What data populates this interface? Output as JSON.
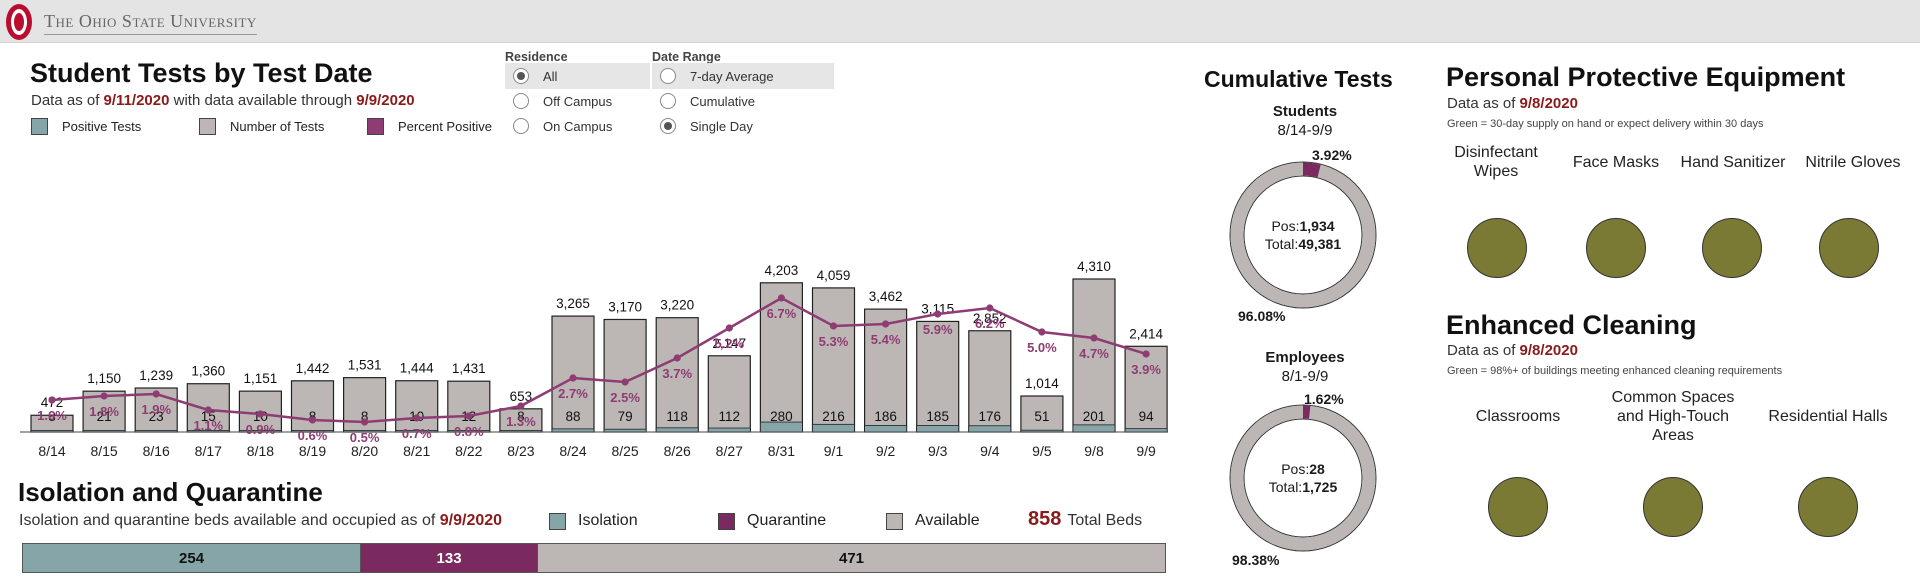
{
  "header": {
    "university": "The Ohio State University"
  },
  "tests_panel": {
    "title": "Student Tests by Test Date",
    "subtitle_prefix": "Data as of ",
    "as_of_date": "9/11/2020",
    "subtitle_mid": " with data available through ",
    "through_date": "9/9/2020",
    "legend": [
      {
        "label": "Positive Tests",
        "color": "#86a5a8"
      },
      {
        "label": "Number of Tests",
        "color": "#bcb7b4"
      },
      {
        "label": "Percent Positive",
        "color": "#8e3c73"
      }
    ]
  },
  "filters": {
    "residence": {
      "title": "Residence",
      "options": [
        "All",
        "Off Campus",
        "On Campus"
      ],
      "selected": "All"
    },
    "date_range": {
      "title": "Date Range",
      "options": [
        "7-day Average",
        "Cumulative",
        "Single Day"
      ],
      "selected": "Single Day"
    }
  },
  "chart_data": {
    "type": "bar",
    "categories": [
      "8/14",
      "8/15",
      "8/16",
      "8/17",
      "8/18",
      "8/19",
      "8/20",
      "8/21",
      "8/22",
      "8/23",
      "8/24",
      "8/25",
      "8/26",
      "8/27",
      "8/31",
      "9/1",
      "9/2",
      "9/3",
      "9/4",
      "9/5",
      "9/8",
      "9/9"
    ],
    "series": [
      {
        "name": "Number of Tests",
        "values": [
          472,
          1150,
          1239,
          1360,
          1151,
          1442,
          1531,
          1444,
          1431,
          653,
          3265,
          3170,
          3220,
          2147,
          4203,
          4059,
          3462,
          3115,
          2852,
          1014,
          4310,
          2414
        ],
        "labels": [
          "472",
          "1,150",
          "1,239",
          "1,360",
          "1,151",
          "1,442",
          "1,531",
          "1,444",
          "1,431",
          "653",
          "3,265",
          "3,170",
          "3,220",
          "2,147",
          "4,203",
          "4,059",
          "3,462",
          "3,115",
          "2,852",
          "1,014",
          "4,310",
          "2,414"
        ]
      },
      {
        "name": "Positive Tests",
        "values": [
          8,
          21,
          23,
          15,
          10,
          8,
          8,
          10,
          12,
          8,
          88,
          79,
          118,
          112,
          280,
          216,
          186,
          185,
          176,
          51,
          201,
          94
        ],
        "labels": [
          "8",
          "21",
          "23",
          "15",
          "10",
          "8",
          "8",
          "10",
          "12",
          "8",
          "88",
          "79",
          "118",
          "112",
          "280",
          "216",
          "186",
          "185",
          "176",
          "51",
          "201",
          "94"
        ]
      },
      {
        "name": "Percent Positive",
        "values": [
          1.6,
          1.8,
          1.9,
          1.1,
          0.9,
          0.6,
          0.5,
          0.7,
          0.8,
          1.3,
          2.7,
          2.5,
          3.7,
          5.2,
          6.7,
          5.3,
          5.4,
          5.9,
          6.2,
          5.0,
          4.7,
          3.9
        ],
        "labels": [
          "1.6%",
          "1.8%",
          "1.9%",
          "1.1%",
          "0.9%",
          "0.6%",
          "0.5%",
          "0.7%",
          "0.8%",
          "1.3%",
          "2.7%",
          "2.5%",
          "3.7%",
          "5.2%",
          "6.7%",
          "5.3%",
          "5.4%",
          "5.9%",
          "6.2%",
          "5.0%",
          "4.7%",
          "3.9%"
        ]
      }
    ],
    "title": "Student Tests by Test Date",
    "legend_position": "top-left"
  },
  "isolation": {
    "title": "Isolation and Quarantine",
    "subtitle_prefix": "Isolation and quarantine beds available and occupied as of ",
    "as_of_date": "9/9/2020",
    "legend": [
      {
        "label": "Isolation",
        "color": "#86a5a8"
      },
      {
        "label": "Quarantine",
        "color": "#7a2a5e"
      },
      {
        "label": "Available",
        "color": "#bcb7b4"
      }
    ],
    "total_value": "858",
    "total_label": "Total Beds",
    "segments": [
      {
        "label": "254",
        "value": 254,
        "color": "#86a5a8"
      },
      {
        "label": "133",
        "value": 133,
        "color": "#7a2a5e",
        "text_color": "#ffffff"
      },
      {
        "label": "471",
        "value": 471,
        "color": "#bcb7b4"
      }
    ]
  },
  "cumulative": {
    "title": "Cumulative Tests",
    "students": {
      "heading": "Students",
      "range": "8/14-9/9",
      "pos_label": "Pos:",
      "pos_value": "1,934",
      "total_label": "Total:",
      "total_value": "49,381",
      "pct_pos": "3.92%",
      "pct_neg": "96.08%",
      "fraction": 0.0392
    },
    "employees": {
      "heading": "Employees",
      "range": "8/1-9/9",
      "pos_label": "Pos:",
      "pos_value": "28",
      "total_label": "Total:",
      "total_value": "1,725",
      "pct_pos": "1.62%",
      "pct_neg": "98.38%",
      "fraction": 0.0162
    },
    "colors": {
      "positive": "#7a2a5e",
      "negative": "#bcb7b4"
    }
  },
  "ppe": {
    "title": "Personal Protective Equipment",
    "subtitle_prefix": "Data as of ",
    "as_of_date": "9/8/2020",
    "note": "Green = 30-day supply on hand or expect delivery within 30 days",
    "items": [
      "Disinfectant Wipes",
      "Face Masks",
      "Hand Sanitizer",
      "Nitrile Gloves"
    ],
    "status_color": "#7b7a35"
  },
  "cleaning": {
    "title": "Enhanced Cleaning",
    "subtitle_prefix": "Data as of ",
    "as_of_date": "9/8/2020",
    "note": "Green = 98%+ of buildings meeting enhanced cleaning requirements",
    "items": [
      "Classrooms",
      "Common Spaces and High-Touch Areas",
      "Residential Halls"
    ],
    "status_color": "#7b7a35"
  }
}
